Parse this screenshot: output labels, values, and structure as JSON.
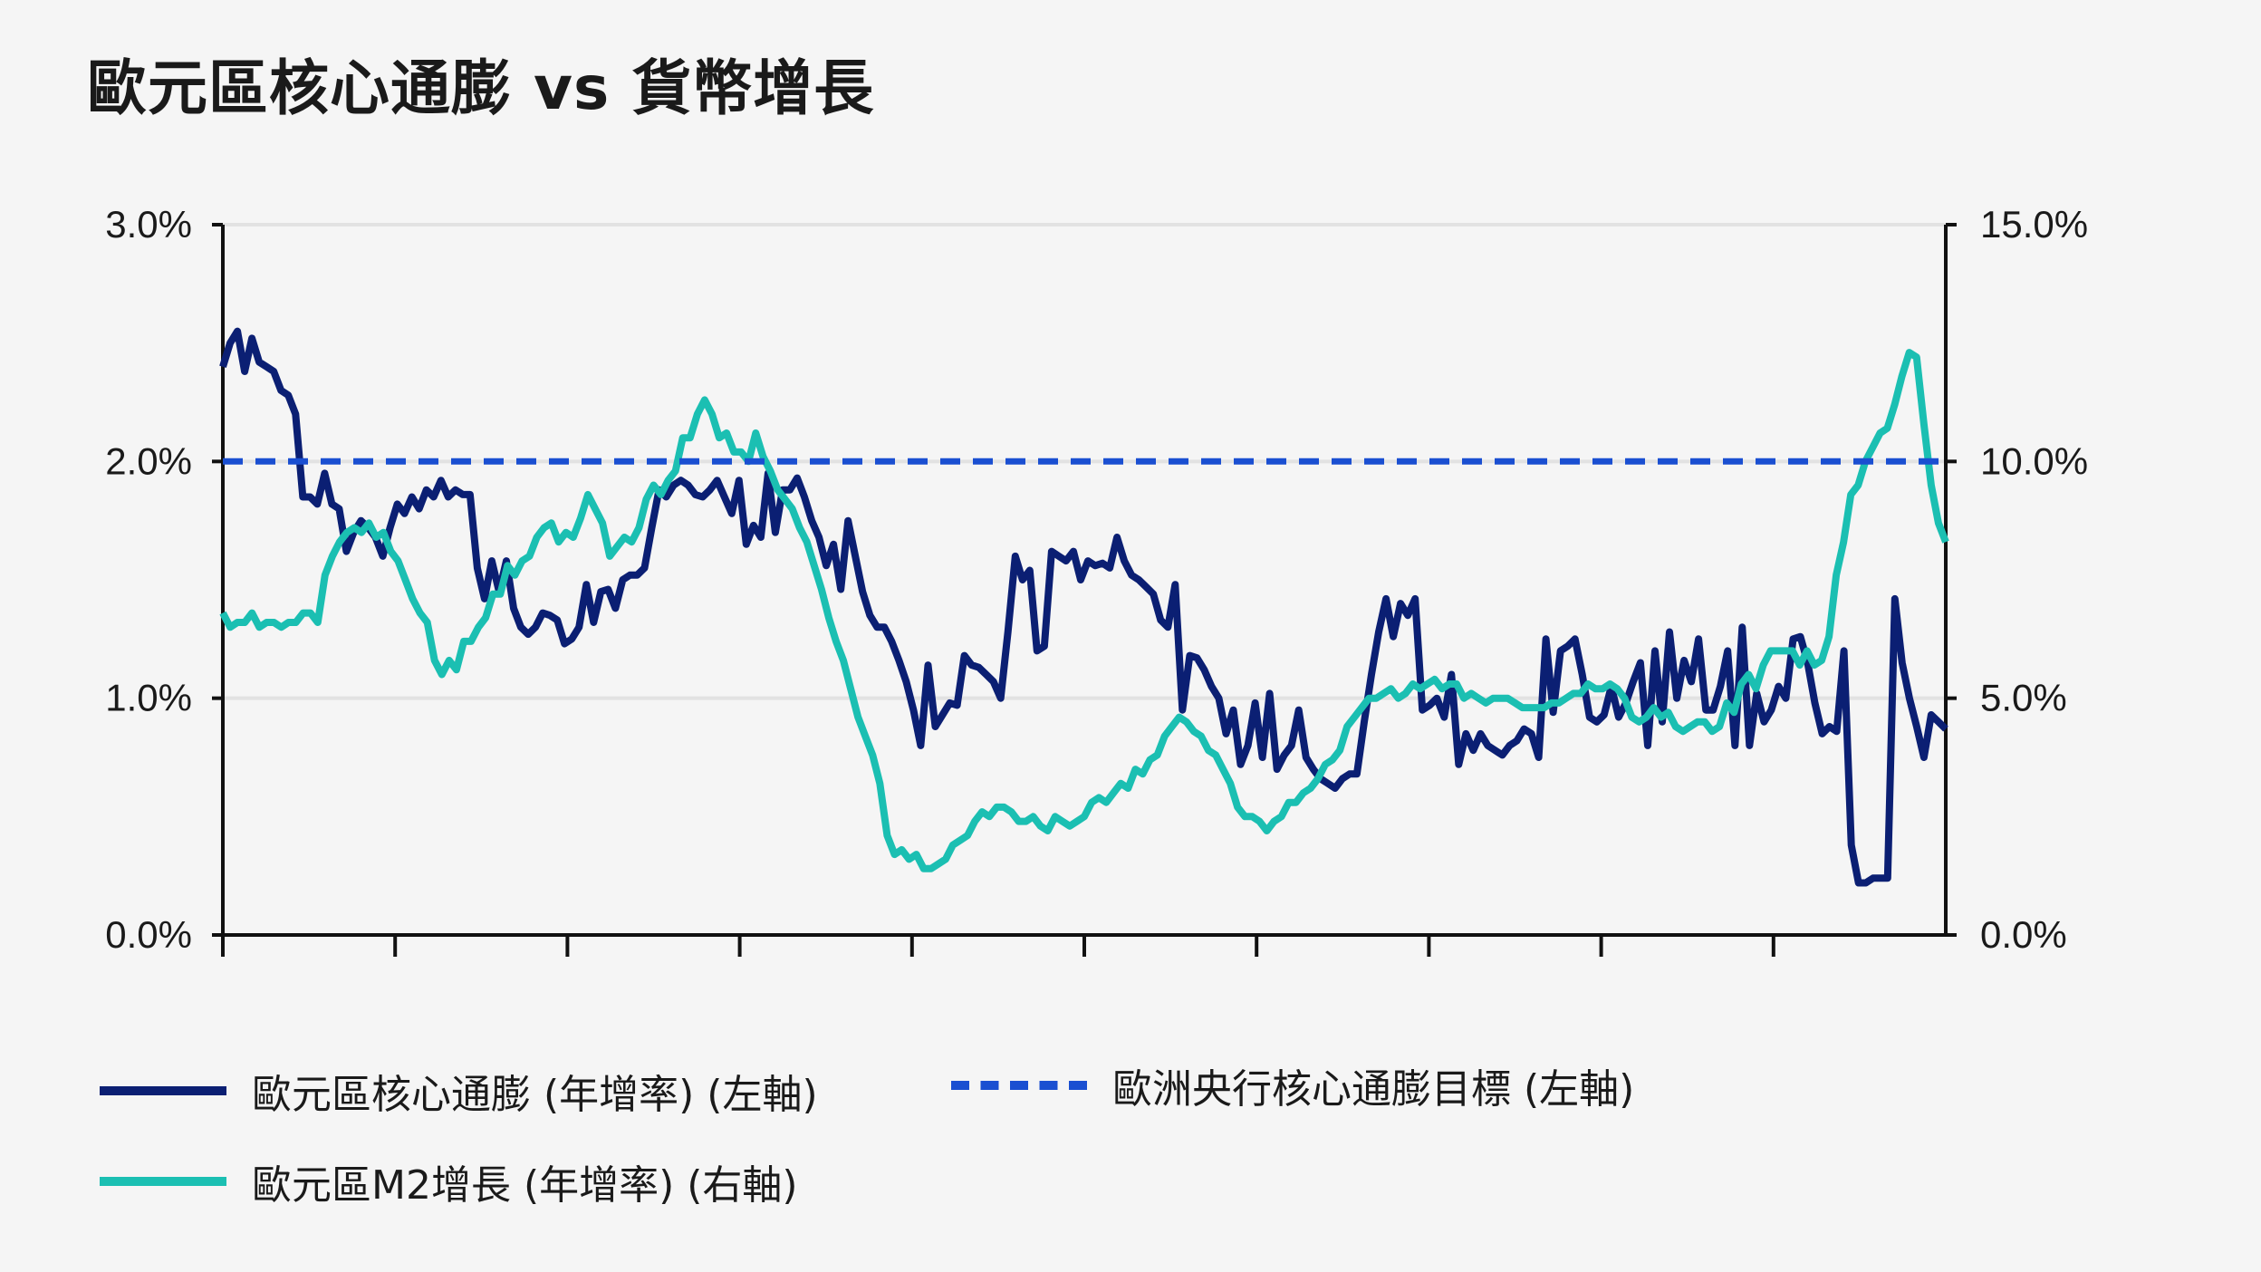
{
  "title": "歐元區核心通膨 vs 貨幣增長",
  "legend": {
    "core": "歐元區核心通膨 (年增率) (左軸)",
    "target": "歐洲央行核心通膨目標 (左軸)",
    "m2": "歐元區M2增長 (年增率) (右軸)"
  },
  "colors": {
    "core": "#0b1f73",
    "m2": "#1bbfb2",
    "target": "#1a4fd1",
    "grid": "#e2e2e2"
  },
  "chart_data": {
    "type": "line",
    "left_axis": {
      "ylim": [
        0,
        3.0
      ],
      "ticks": [
        "0.0%",
        "1.0%",
        "2.0%",
        "3.0%"
      ],
      "tick_values": [
        0,
        1,
        2,
        3
      ]
    },
    "right_axis": {
      "ylim": [
        0,
        15.0
      ],
      "ticks": [
        "0.0%",
        "5.0%",
        "10.0%",
        "15.0%"
      ],
      "tick_values": [
        0,
        5,
        10,
        15
      ]
    },
    "x_tick_count": 10,
    "target_value": 2.0,
    "series": [
      {
        "name": "歐元區核心通膨 (年增率) (左軸)",
        "axis": "left",
        "values": [
          2.4,
          2.5,
          2.55,
          2.38,
          2.52,
          2.42,
          2.4,
          2.38,
          2.3,
          2.28,
          2.2,
          1.85,
          1.85,
          1.82,
          1.95,
          1.82,
          1.8,
          1.62,
          1.7,
          1.75,
          1.72,
          1.68,
          1.6,
          1.72,
          1.82,
          1.78,
          1.85,
          1.8,
          1.88,
          1.85,
          1.92,
          1.85,
          1.88,
          1.86,
          1.86,
          1.55,
          1.42,
          1.58,
          1.45,
          1.58,
          1.38,
          1.3,
          1.27,
          1.3,
          1.36,
          1.35,
          1.33,
          1.23,
          1.25,
          1.3,
          1.48,
          1.32,
          1.45,
          1.46,
          1.38,
          1.5,
          1.52,
          1.52,
          1.55,
          1.72,
          1.88,
          1.85,
          1.9,
          1.92,
          1.9,
          1.86,
          1.85,
          1.88,
          1.92,
          1.85,
          1.78,
          1.92,
          1.65,
          1.73,
          1.68,
          1.95,
          1.7,
          1.88,
          1.88,
          1.93,
          1.85,
          1.75,
          1.68,
          1.56,
          1.65,
          1.46,
          1.75,
          1.6,
          1.45,
          1.35,
          1.3,
          1.3,
          1.24,
          1.16,
          1.07,
          0.95,
          0.8,
          1.14,
          0.88,
          0.93,
          0.98,
          0.97,
          1.18,
          1.14,
          1.13,
          1.1,
          1.07,
          1.0,
          1.28,
          1.6,
          1.5,
          1.54,
          1.2,
          1.22,
          1.62,
          1.6,
          1.58,
          1.62,
          1.5,
          1.58,
          1.56,
          1.57,
          1.55,
          1.68,
          1.58,
          1.52,
          1.5,
          1.47,
          1.44,
          1.33,
          1.3,
          1.48,
          0.95,
          1.18,
          1.17,
          1.12,
          1.05,
          1.0,
          0.85,
          0.95,
          0.72,
          0.8,
          0.98,
          0.75,
          1.02,
          0.7,
          0.76,
          0.8,
          0.95,
          0.75,
          0.7,
          0.66,
          0.64,
          0.62,
          0.66,
          0.68,
          0.68,
          0.9,
          1.1,
          1.28,
          1.42,
          1.26,
          1.4,
          1.35,
          1.42,
          0.95,
          0.97,
          1.0,
          0.92,
          1.1,
          0.72,
          0.85,
          0.78,
          0.85,
          0.8,
          0.78,
          0.76,
          0.8,
          0.82,
          0.87,
          0.85,
          0.75,
          1.25,
          0.94,
          1.2,
          1.22,
          1.25,
          1.1,
          0.92,
          0.9,
          0.93,
          1.05,
          0.92,
          0.98,
          1.07,
          1.15,
          0.8,
          1.2,
          0.9,
          1.28,
          1.0,
          1.16,
          1.07,
          1.25,
          0.95,
          0.95,
          1.05,
          1.2,
          0.8,
          1.3,
          0.8,
          1.02,
          0.9,
          0.95,
          1.05,
          1.0,
          1.25,
          1.26,
          1.15,
          0.98,
          0.85,
          0.88,
          0.86,
          1.2,
          0.38,
          0.22,
          0.22,
          0.24,
          0.24,
          0.24,
          1.42,
          1.15,
          1.0,
          0.88,
          0.75,
          0.93,
          0.9,
          0.87
        ]
      },
      {
        "name": "歐元區M2增長 (年增率) (右軸)",
        "axis": "right",
        "values": [
          6.8,
          6.5,
          6.6,
          6.6,
          6.8,
          6.5,
          6.6,
          6.6,
          6.5,
          6.6,
          6.6,
          6.8,
          6.8,
          6.6,
          7.6,
          8.0,
          8.3,
          8.5,
          8.6,
          8.5,
          8.7,
          8.4,
          8.5,
          8.1,
          7.9,
          7.5,
          7.1,
          6.8,
          6.6,
          5.8,
          5.5,
          5.8,
          5.6,
          6.2,
          6.2,
          6.5,
          6.7,
          7.2,
          7.2,
          7.8,
          7.6,
          7.9,
          8.0,
          8.4,
          8.6,
          8.7,
          8.3,
          8.5,
          8.4,
          8.8,
          9.3,
          9.0,
          8.7,
          8.0,
          8.2,
          8.4,
          8.3,
          8.6,
          9.2,
          9.5,
          9.3,
          9.6,
          9.8,
          10.5,
          10.5,
          11.0,
          11.3,
          11.0,
          10.5,
          10.6,
          10.2,
          10.2,
          10.0,
          10.6,
          10.1,
          9.8,
          9.4,
          9.2,
          9.0,
          8.6,
          8.3,
          7.8,
          7.3,
          6.7,
          6.2,
          5.8,
          5.2,
          4.6,
          4.2,
          3.8,
          3.2,
          2.1,
          1.7,
          1.8,
          1.6,
          1.7,
          1.4,
          1.4,
          1.5,
          1.6,
          1.9,
          2.0,
          2.1,
          2.4,
          2.6,
          2.5,
          2.7,
          2.7,
          2.6,
          2.4,
          2.4,
          2.5,
          2.3,
          2.2,
          2.5,
          2.4,
          2.3,
          2.4,
          2.5,
          2.8,
          2.9,
          2.8,
          3.0,
          3.2,
          3.1,
          3.5,
          3.4,
          3.7,
          3.8,
          4.2,
          4.4,
          4.6,
          4.5,
          4.3,
          4.2,
          3.9,
          3.8,
          3.5,
          3.2,
          2.7,
          2.5,
          2.5,
          2.4,
          2.2,
          2.4,
          2.5,
          2.8,
          2.8,
          3.0,
          3.1,
          3.3,
          3.6,
          3.7,
          3.9,
          4.4,
          4.6,
          4.8,
          5.0,
          5.0,
          5.1,
          5.2,
          5.0,
          5.1,
          5.3,
          5.2,
          5.3,
          5.4,
          5.2,
          5.3,
          5.3,
          5.0,
          5.1,
          5.0,
          4.9,
          5.0,
          5.0,
          5.0,
          4.9,
          4.8,
          4.8,
          4.8,
          4.8,
          4.9,
          4.9,
          5.0,
          5.1,
          5.1,
          5.3,
          5.2,
          5.2,
          5.3,
          5.2,
          5.0,
          4.6,
          4.5,
          4.6,
          4.8,
          4.6,
          4.7,
          4.4,
          4.3,
          4.4,
          4.5,
          4.5,
          4.3,
          4.4,
          4.9,
          4.7,
          5.3,
          5.5,
          5.2,
          5.7,
          6.0,
          6.0,
          6.0,
          6.0,
          5.7,
          6.0,
          5.7,
          5.8,
          6.3,
          7.6,
          8.3,
          9.3,
          9.5,
          10.0,
          10.3,
          10.6,
          10.7,
          11.2,
          11.8,
          12.3,
          12.2,
          10.8,
          9.5,
          8.7,
          8.3
        ]
      },
      {
        "name": "歐洲央行核心通膨目標 (左軸)",
        "axis": "left",
        "values": [
          2.0,
          2.0
        ]
      }
    ]
  }
}
